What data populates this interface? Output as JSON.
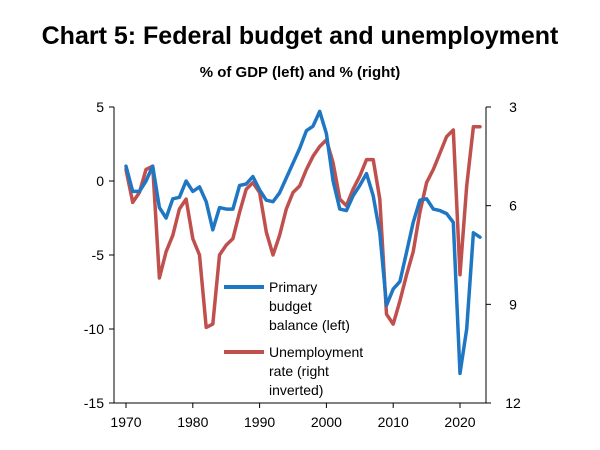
{
  "chart_data": {
    "type": "line",
    "title": "Chart 5: Federal budget and unemployment",
    "subtitle": "% of GDP (left) and % (right)",
    "x_ticks": [
      1970,
      1980,
      1990,
      2000,
      2010,
      2020
    ],
    "x_range": [
      1970,
      2023
    ],
    "y_left": {
      "range": [
        -15,
        5
      ],
      "ticks": [
        5,
        0,
        -5,
        -10,
        -15
      ]
    },
    "y_right": {
      "range": [
        3,
        12
      ],
      "inverted": true,
      "ticks": [
        3,
        6,
        9,
        12
      ]
    },
    "grid": false,
    "legend": {
      "position": "center"
    },
    "series": [
      {
        "name": "Primary budget balance (left)",
        "legend_lines": [
          "Primary",
          "budget",
          "balance (left)"
        ],
        "axis": "left",
        "color": "#1f77c4",
        "points": [
          [
            1970,
            1.0
          ],
          [
            1971,
            -0.7
          ],
          [
            1972,
            -0.7
          ],
          [
            1973,
            0.0
          ],
          [
            1974,
            1.0
          ],
          [
            1975,
            -1.8
          ],
          [
            1976,
            -2.5
          ],
          [
            1977,
            -1.2
          ],
          [
            1978,
            -1.1
          ],
          [
            1979,
            0.0
          ],
          [
            1980,
            -0.7
          ],
          [
            1981,
            -0.4
          ],
          [
            1982,
            -1.4
          ],
          [
            1983,
            -3.3
          ],
          [
            1984,
            -1.8
          ],
          [
            1985,
            -1.9
          ],
          [
            1986,
            -1.9
          ],
          [
            1987,
            -0.3
          ],
          [
            1988,
            -0.2
          ],
          [
            1989,
            0.3
          ],
          [
            1990,
            -0.6
          ],
          [
            1991,
            -1.3
          ],
          [
            1992,
            -1.4
          ],
          [
            1993,
            -0.8
          ],
          [
            1994,
            0.2
          ],
          [
            1995,
            1.2
          ],
          [
            1996,
            2.2
          ],
          [
            1997,
            3.4
          ],
          [
            1998,
            3.7
          ],
          [
            1999,
            4.7
          ],
          [
            2000,
            3.2
          ],
          [
            2001,
            0.0
          ],
          [
            2002,
            -1.9
          ],
          [
            2003,
            -2.0
          ],
          [
            2004,
            -1.0
          ],
          [
            2005,
            -0.3
          ],
          [
            2006,
            0.5
          ],
          [
            2007,
            -1.0
          ],
          [
            2008,
            -3.5
          ],
          [
            2009,
            -8.4
          ],
          [
            2010,
            -7.3
          ],
          [
            2011,
            -6.8
          ],
          [
            2012,
            -4.8
          ],
          [
            2013,
            -2.8
          ],
          [
            2014,
            -1.3
          ],
          [
            2015,
            -1.2
          ],
          [
            2016,
            -1.9
          ],
          [
            2017,
            -2.0
          ],
          [
            2018,
            -2.2
          ],
          [
            2019,
            -2.8
          ],
          [
            2020,
            -13.0
          ],
          [
            2021,
            -10.0
          ],
          [
            2022,
            -3.5
          ],
          [
            2023,
            -3.8
          ]
        ]
      },
      {
        "name": "Unemployment rate (right inverted)",
        "legend_lines": [
          "Unemployment",
          "rate (right",
          "inverted)"
        ],
        "axis": "right",
        "color": "#c0504d",
        "points": [
          [
            1970,
            4.9
          ],
          [
            1971,
            5.9
          ],
          [
            1972,
            5.6
          ],
          [
            1973,
            4.9
          ],
          [
            1974,
            4.8
          ],
          [
            1975,
            8.2
          ],
          [
            1976,
            7.4
          ],
          [
            1977,
            6.9
          ],
          [
            1978,
            6.1
          ],
          [
            1979,
            5.8
          ],
          [
            1980,
            7.0
          ],
          [
            1981,
            7.5
          ],
          [
            1982,
            9.7
          ],
          [
            1983,
            9.6
          ],
          [
            1984,
            7.5
          ],
          [
            1985,
            7.2
          ],
          [
            1986,
            7.0
          ],
          [
            1987,
            6.2
          ],
          [
            1988,
            5.5
          ],
          [
            1989,
            5.3
          ],
          [
            1990,
            5.6
          ],
          [
            1991,
            6.8
          ],
          [
            1992,
            7.5
          ],
          [
            1993,
            6.9
          ],
          [
            1994,
            6.1
          ],
          [
            1995,
            5.6
          ],
          [
            1996,
            5.4
          ],
          [
            1997,
            4.9
          ],
          [
            1998,
            4.5
          ],
          [
            1999,
            4.2
          ],
          [
            2000,
            4.0
          ],
          [
            2001,
            4.7
          ],
          [
            2002,
            5.8
          ],
          [
            2003,
            6.0
          ],
          [
            2004,
            5.5
          ],
          [
            2005,
            5.1
          ],
          [
            2006,
            4.6
          ],
          [
            2007,
            4.6
          ],
          [
            2008,
            5.8
          ],
          [
            2009,
            9.3
          ],
          [
            2010,
            9.6
          ],
          [
            2011,
            8.9
          ],
          [
            2012,
            8.1
          ],
          [
            2013,
            7.4
          ],
          [
            2014,
            6.2
          ],
          [
            2015,
            5.3
          ],
          [
            2016,
            4.9
          ],
          [
            2017,
            4.4
          ],
          [
            2018,
            3.9
          ],
          [
            2019,
            3.7
          ],
          [
            2020,
            8.1
          ],
          [
            2021,
            5.4
          ],
          [
            2022,
            3.6
          ],
          [
            2023,
            3.6
          ]
        ]
      }
    ]
  }
}
